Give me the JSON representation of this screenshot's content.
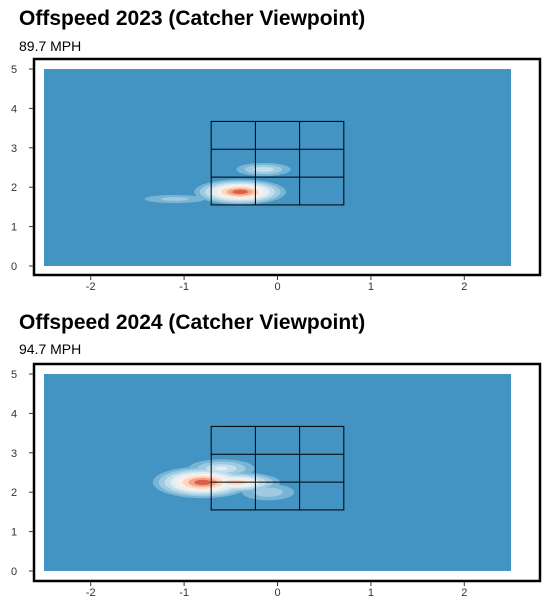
{
  "chart_data": [
    {
      "type": "heatmap",
      "title": "Offspeed 2023 (Catcher Viewpoint)",
      "subtitle": "89.7 MPH",
      "xlabel": "",
      "ylabel": "",
      "xlim": [
        -2.5,
        2.5
      ],
      "ylim": [
        0,
        5
      ],
      "x_ticks": [
        -2,
        -1,
        0,
        1,
        2
      ],
      "y_ticks": [
        0,
        1,
        2,
        3,
        4,
        5
      ],
      "strike_zone": {
        "x": [
          -0.71,
          0.71
        ],
        "y": [
          1.55,
          3.67
        ],
        "cols": 3,
        "rows": 3
      },
      "density_peaks": [
        {
          "x": -0.4,
          "y": 1.88,
          "level": 1.0
        },
        {
          "x": -0.15,
          "y": 2.45,
          "level": 0.45
        },
        {
          "x": -1.1,
          "y": 1.7,
          "level": 0.3
        }
      ],
      "background_color": "#4393c3",
      "grid": false
    },
    {
      "type": "heatmap",
      "title": "Offspeed 2024 (Catcher Viewpoint)",
      "subtitle": "94.7 MPH",
      "xlabel": "",
      "ylabel": "",
      "xlim": [
        -2.5,
        2.5
      ],
      "ylim": [
        0,
        5
      ],
      "x_ticks": [
        -2,
        -1,
        0,
        1,
        2
      ],
      "y_ticks": [
        0,
        1,
        2,
        3,
        4,
        5
      ],
      "strike_zone": {
        "x": [
          -0.71,
          0.71
        ],
        "y": [
          1.55,
          3.67
        ],
        "cols": 3,
        "rows": 3
      },
      "density_peaks": [
        {
          "x": -0.8,
          "y": 2.25,
          "level": 1.0
        },
        {
          "x": -0.45,
          "y": 2.25,
          "level": 0.8
        },
        {
          "x": -0.6,
          "y": 2.6,
          "level": 0.5
        },
        {
          "x": -0.1,
          "y": 2.0,
          "level": 0.35
        }
      ],
      "background_color": "#4393c3",
      "grid": false
    }
  ]
}
